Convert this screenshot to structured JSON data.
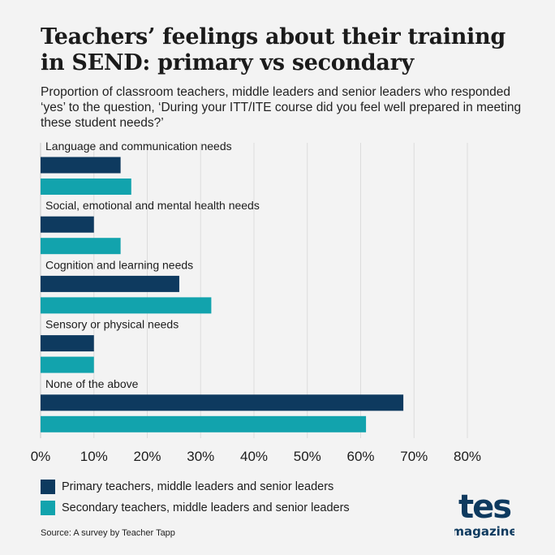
{
  "header": {
    "title": "Teachers’ feelings about their training in SEND: primary vs secondary",
    "subtitle": "Proportion of classroom teachers, middle leaders and senior leaders who responded ‘yes’ to the question, ‘During your ITT/ITE course did you feel well prepared in meeting these student needs?’"
  },
  "chart_data": {
    "type": "bar",
    "orientation": "horizontal",
    "categories": [
      "Language and communication needs",
      "Social, emotional and mental health needs",
      "Cognition and learning needs",
      "Sensory or physical needs",
      "None of the above"
    ],
    "series": [
      {
        "name": "Primary teachers, middle leaders and senior leaders",
        "values": [
          15,
          10,
          26,
          10,
          68
        ],
        "color": "#0e3a5f"
      },
      {
        "name": "Secondary teachers, middle leaders and senior leaders",
        "values": [
          17,
          15,
          32,
          10,
          61
        ],
        "color": "#12a3ad"
      }
    ],
    "xlim": [
      0,
      80
    ],
    "xticks": [
      0,
      10,
      20,
      30,
      40,
      50,
      60,
      70,
      80
    ],
    "xtick_labels": [
      "0%",
      "10%",
      "20%",
      "30%",
      "40%",
      "50%",
      "60%",
      "70%",
      "80%"
    ],
    "grid": true,
    "legend_position": "bottom-left"
  },
  "footer": {
    "source": "Source: A survey by Teacher Tapp",
    "logo_main": "tes",
    "logo_sub": "magazine"
  },
  "colors": {
    "background": "#f3f3f3",
    "primary": "#0e3a5f",
    "secondary": "#12a3ad",
    "grid": "#dcdcdc"
  }
}
